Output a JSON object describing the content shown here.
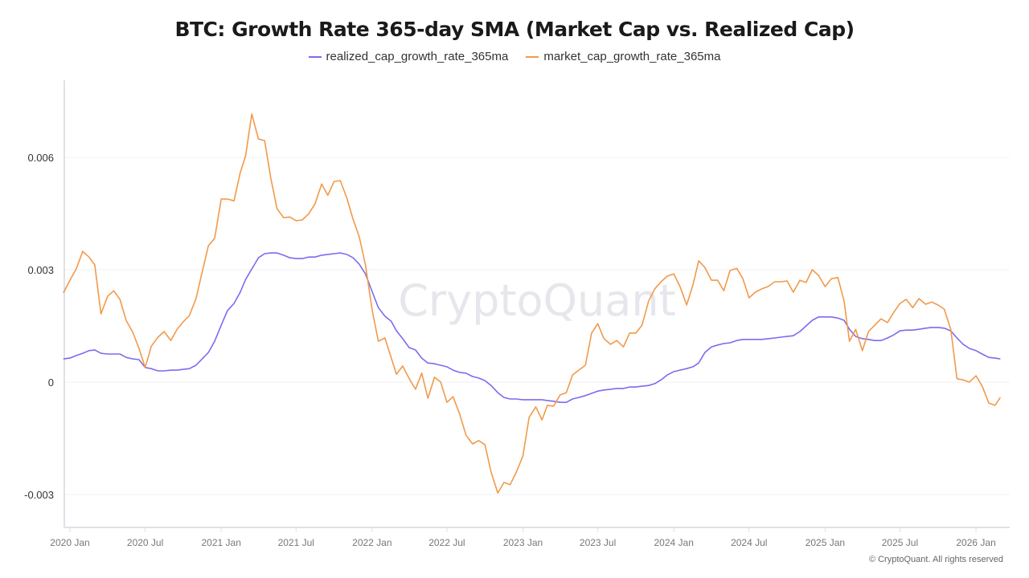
{
  "chart_data": {
    "type": "line",
    "title": "BTC: Growth Rate 365-day SMA (Market Cap vs. Realized Cap)",
    "legend_position": "top-center",
    "grid": true,
    "watermark": "CryptoQuant",
    "copyright": "© CryptoQuant. All rights reserved",
    "ylim": [
      -0.00388,
      0.00806
    ],
    "y_ticks": [
      {
        "value": 0.006,
        "label": "0.006"
      },
      {
        "value": 0.003,
        "label": "0.003"
      },
      {
        "value": 0,
        "label": "0"
      },
      {
        "value": -0.003,
        "label": "-0.003"
      }
    ],
    "x_ticks": [
      {
        "date": "2020-01-01",
        "label": "2020 Jan"
      },
      {
        "date": "2020-07-01",
        "label": "2020 Jul"
      },
      {
        "date": "2021-01-01",
        "label": "2021 Jan"
      },
      {
        "date": "2021-07-01",
        "label": "2021 Jul"
      },
      {
        "date": "2022-01-01",
        "label": "2022 Jan"
      },
      {
        "date": "2022-07-01",
        "label": "2022 Jul"
      },
      {
        "date": "2023-01-01",
        "label": "2023 Jan"
      },
      {
        "date": "2023-07-01",
        "label": "2023 Jul"
      },
      {
        "date": "2024-01-01",
        "label": "2024 Jan"
      },
      {
        "date": "2024-07-01",
        "label": "2024 Jul"
      },
      {
        "date": "2025-01-01",
        "label": "2025 Jan"
      },
      {
        "date": "2025-07-01",
        "label": "2025 Jul"
      },
      {
        "date": "2026-01-01",
        "label": "2026 Jan"
      }
    ],
    "x": [
      "2019-12-16",
      "2020-01-01",
      "2020-01-16",
      "2020-02-01",
      "2020-02-16",
      "2020-03-01",
      "2020-03-16",
      "2020-04-01",
      "2020-04-16",
      "2020-05-01",
      "2020-05-16",
      "2020-06-01",
      "2020-06-16",
      "2020-07-01",
      "2020-07-16",
      "2020-08-01",
      "2020-08-16",
      "2020-09-01",
      "2020-09-16",
      "2020-10-01",
      "2020-10-16",
      "2020-11-01",
      "2020-11-16",
      "2020-12-01",
      "2020-12-16",
      "2021-01-01",
      "2021-01-16",
      "2021-02-01",
      "2021-02-16",
      "2021-03-01",
      "2021-03-16",
      "2021-04-01",
      "2021-04-16",
      "2021-05-01",
      "2021-05-16",
      "2021-06-01",
      "2021-06-16",
      "2021-07-01",
      "2021-07-16",
      "2021-08-01",
      "2021-08-16",
      "2021-09-01",
      "2021-09-16",
      "2021-10-01",
      "2021-10-16",
      "2021-11-01",
      "2021-11-16",
      "2021-12-01",
      "2021-12-16",
      "2022-01-01",
      "2022-01-16",
      "2022-02-01",
      "2022-02-16",
      "2022-03-01",
      "2022-03-16",
      "2022-04-01",
      "2022-04-16",
      "2022-05-01",
      "2022-05-16",
      "2022-06-01",
      "2022-06-16",
      "2022-07-01",
      "2022-07-16",
      "2022-08-01",
      "2022-08-16",
      "2022-09-01",
      "2022-09-16",
      "2022-10-01",
      "2022-10-16",
      "2022-11-01",
      "2022-11-16",
      "2022-12-01",
      "2022-12-16",
      "2023-01-01",
      "2023-01-16",
      "2023-02-01",
      "2023-02-16",
      "2023-03-01",
      "2023-03-16",
      "2023-04-01",
      "2023-04-16",
      "2023-05-01",
      "2023-05-16",
      "2023-06-01",
      "2023-06-16",
      "2023-07-01",
      "2023-07-16",
      "2023-08-01",
      "2023-08-16",
      "2023-09-01",
      "2023-09-16",
      "2023-10-01",
      "2023-10-16",
      "2023-11-01",
      "2023-11-16",
      "2023-12-01",
      "2023-12-16",
      "2024-01-01",
      "2024-01-16",
      "2024-02-01",
      "2024-02-16",
      "2024-03-01",
      "2024-03-16",
      "2024-04-01",
      "2024-04-16",
      "2024-05-01",
      "2024-05-16",
      "2024-06-01",
      "2024-06-16",
      "2024-07-01",
      "2024-07-16",
      "2024-08-01",
      "2024-08-16",
      "2024-09-01",
      "2024-09-16",
      "2024-10-01",
      "2024-10-16",
      "2024-11-01",
      "2024-11-16",
      "2024-12-01",
      "2024-12-16",
      "2025-01-01",
      "2025-01-16",
      "2025-02-01",
      "2025-02-16",
      "2025-03-01",
      "2025-03-16",
      "2025-04-01",
      "2025-04-16",
      "2025-05-01",
      "2025-05-16",
      "2025-06-01",
      "2025-06-16",
      "2025-07-01",
      "2025-07-16",
      "2025-08-01",
      "2025-08-16",
      "2025-09-01",
      "2025-09-16",
      "2025-10-01",
      "2025-10-16",
      "2025-11-01",
      "2025-11-16",
      "2025-12-01",
      "2025-12-16",
      "2026-01-01",
      "2026-01-16",
      "2026-02-01",
      "2026-02-16",
      "2026-03-01"
    ],
    "series": [
      {
        "name": "realized_cap_growth_rate_365ma",
        "color": "#7b6cf0",
        "values": [
          0.00062,
          0.00064,
          0.00071,
          0.00077,
          0.00084,
          0.00086,
          0.00077,
          0.00075,
          0.00075,
          0.00075,
          0.00066,
          0.00062,
          0.0006,
          0.00039,
          0.00036,
          0.0003,
          0.0003,
          0.00032,
          0.00032,
          0.00034,
          0.00036,
          0.00045,
          0.00062,
          0.00079,
          0.00109,
          0.00152,
          0.00191,
          0.0021,
          0.0024,
          0.00274,
          0.00302,
          0.00332,
          0.00343,
          0.00345,
          0.00345,
          0.00339,
          0.00332,
          0.0033,
          0.0033,
          0.00334,
          0.00334,
          0.00339,
          0.00341,
          0.00343,
          0.00345,
          0.00341,
          0.00332,
          0.00315,
          0.00289,
          0.00242,
          0.00199,
          0.00176,
          0.00163,
          0.00137,
          0.00116,
          0.00092,
          0.00086,
          0.00064,
          0.00051,
          0.00049,
          0.00045,
          0.00041,
          0.00032,
          0.00026,
          0.00024,
          0.00015,
          0.00011,
          4e-05,
          -9e-05,
          -0.00028,
          -0.00041,
          -0.00045,
          -0.00045,
          -0.00047,
          -0.00047,
          -0.00047,
          -0.00047,
          -0.00049,
          -0.00051,
          -0.00054,
          -0.00054,
          -0.00045,
          -0.00041,
          -0.00036,
          -0.0003,
          -0.00024,
          -0.00021,
          -0.00019,
          -0.00017,
          -0.00017,
          -0.00013,
          -0.00013,
          -0.00011,
          -9e-05,
          -4e-05,
          6e-05,
          0.00019,
          0.00028,
          0.00032,
          0.00036,
          0.00041,
          0.00051,
          0.00079,
          0.00094,
          0.00099,
          0.00103,
          0.00105,
          0.00111,
          0.00114,
          0.00114,
          0.00114,
          0.00114,
          0.00116,
          0.00118,
          0.0012,
          0.00122,
          0.00124,
          0.00135,
          0.0015,
          0.00165,
          0.00174,
          0.00174,
          0.00174,
          0.00171,
          0.00165,
          0.00141,
          0.00122,
          0.00116,
          0.00114,
          0.00111,
          0.00111,
          0.00118,
          0.00126,
          0.00137,
          0.00139,
          0.00139,
          0.00141,
          0.00144,
          0.00146,
          0.00146,
          0.00144,
          0.00137,
          0.00118,
          0.00101,
          0.0009,
          0.00084,
          0.00075,
          0.00066,
          0.00064,
          0.00062
        ]
      },
      {
        "name": "market_cap_growth_rate_365ma",
        "color": "#f2994a",
        "values": [
          0.00238,
          0.00272,
          0.00302,
          0.00349,
          0.00334,
          0.00313,
          0.00182,
          0.00229,
          0.00244,
          0.00221,
          0.00165,
          0.00133,
          0.0009,
          0.00039,
          0.00096,
          0.0012,
          0.00135,
          0.00111,
          0.00141,
          0.00161,
          0.00178,
          0.00223,
          0.00294,
          0.00364,
          0.00384,
          0.00489,
          0.00489,
          0.00484,
          0.00559,
          0.00604,
          0.00716,
          0.00649,
          0.00645,
          0.00544,
          0.00463,
          0.00439,
          0.00441,
          0.00431,
          0.00433,
          0.0045,
          0.00476,
          0.00529,
          0.00499,
          0.00536,
          0.00538,
          0.00491,
          0.00435,
          0.00388,
          0.00313,
          0.00193,
          0.00109,
          0.00118,
          0.00066,
          0.00021,
          0.00043,
          9e-05,
          -0.00019,
          0.00024,
          -0.00043,
          0.00013,
          0,
          -0.00054,
          -0.00039,
          -0.00086,
          -0.00141,
          -0.00165,
          -0.00156,
          -0.00167,
          -0.0024,
          -0.00296,
          -0.00268,
          -0.00274,
          -0.0024,
          -0.00197,
          -0.00094,
          -0.00066,
          -0.00101,
          -0.00062,
          -0.00064,
          -0.00034,
          -0.00028,
          0.00019,
          0.00032,
          0.00045,
          0.00131,
          0.00156,
          0.00116,
          0.00101,
          0.00111,
          0.00094,
          0.00131,
          0.00131,
          0.00152,
          0.00216,
          0.00249,
          0.00268,
          0.00283,
          0.00289,
          0.00255,
          0.00206,
          0.00259,
          0.00324,
          0.00306,
          0.00272,
          0.00272,
          0.00244,
          0.00298,
          0.00304,
          0.00276,
          0.00225,
          0.0024,
          0.00249,
          0.00255,
          0.00268,
          0.00268,
          0.0027,
          0.0024,
          0.00272,
          0.00266,
          0.003,
          0.00285,
          0.00255,
          0.00276,
          0.00279,
          0.00216,
          0.00109,
          0.00141,
          0.00084,
          0.00135,
          0.00152,
          0.00169,
          0.00159,
          0.00186,
          0.0021,
          0.00221,
          0.00199,
          0.00223,
          0.00208,
          0.00214,
          0.00206,
          0.00195,
          0.00141,
          9e-05,
          6e-05,
          0,
          0.00017,
          -0.00011,
          -0.00056,
          -0.00062,
          -0.00041
        ]
      }
    ]
  }
}
